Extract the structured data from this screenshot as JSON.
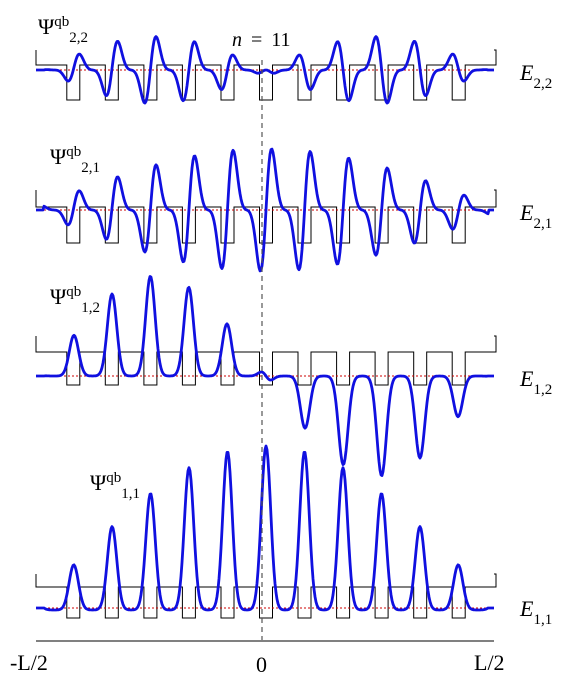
{
  "figure": {
    "annotation": {
      "n_symbol": "n",
      "equals": "=",
      "value": "11"
    },
    "x_axis": {
      "ticks": [
        "-L/2",
        "0",
        "L/2"
      ]
    },
    "colors": {
      "wavefunction": "#1010e0",
      "potential": "#000000",
      "energy_level": "#cc0000",
      "center_line": "#555555"
    },
    "panels": [
      {
        "psi_base": "Ψ",
        "psi_sup": "qb",
        "psi_sub": "2,2",
        "energy_base": "E",
        "energy_sub": "2,2"
      },
      {
        "psi_base": "Ψ",
        "psi_sup": "qb",
        "psi_sub": "2,1",
        "energy_base": "E",
        "energy_sub": "2,1"
      },
      {
        "psi_base": "Ψ",
        "psi_sup": "qb",
        "psi_sub": "1,2",
        "energy_base": "E",
        "energy_sub": "1,2"
      },
      {
        "psi_base": "Ψ",
        "psi_sup": "qb",
        "psi_sub": "1,1",
        "energy_base": "E",
        "energy_sub": "1,1"
      }
    ]
  }
}
